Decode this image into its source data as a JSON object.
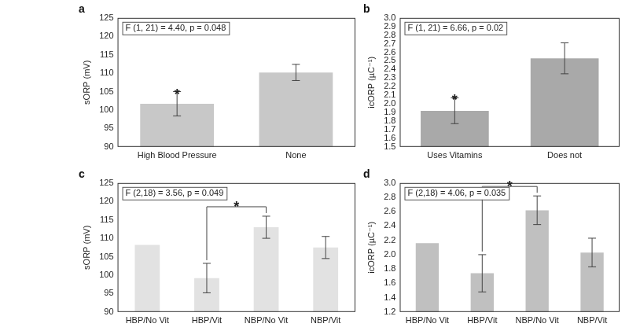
{
  "chart_data": [
    {
      "type": "bar",
      "title": "a",
      "annotation": "F (1, 21) = 4.40, p = 0.048",
      "y_label": "sORP (mV)",
      "categories": [
        "High Blood Pressure",
        "None"
      ],
      "values": [
        101.7,
        110.2
      ],
      "errors": [
        3.3,
        2.2
      ],
      "colors": [
        "#c8c8c8",
        "#c8c8c8"
      ],
      "ylim": [
        90,
        125
      ],
      "yticks": [
        90,
        95,
        100,
        105,
        110,
        115,
        120,
        125
      ],
      "grid": false,
      "significance": {
        "label": "*",
        "categories": [
          "High Blood Pressure"
        ]
      }
    },
    {
      "type": "bar",
      "title": "b",
      "annotation": "F (1, 21) = 6.66, p = 0.02",
      "y_label": "icORP (µC⁻¹)",
      "categories": [
        "Uses Vitamins",
        "Does not"
      ],
      "values": [
        1.92,
        2.53
      ],
      "errors": [
        0.15,
        0.18
      ],
      "colors": [
        "#a9a9a9",
        "#a9a9a9"
      ],
      "ylim": [
        1.5,
        3.0
      ],
      "yticks": [
        1.5,
        1.6,
        1.7,
        1.8,
        1.9,
        {
          "value": 2,
          "label": "2.0"
        },
        2.1,
        2.2,
        2.3,
        2.4,
        2.5,
        2.6,
        2.7,
        2.8,
        2.9,
        {
          "value": 3,
          "label": "3.0"
        }
      ],
      "grid": false,
      "significance": {
        "label": "*",
        "categories": [
          "Uses Vitamins"
        ]
      }
    },
    {
      "type": "bar",
      "title": "c",
      "annotation": "F (2,18) = 3.56, p = 0.049",
      "y_label": "sORP (mV)",
      "categories": [
        "HBP/No Vit",
        "HBP/Vit",
        "NBP/No Vit",
        "NBP/Vit"
      ],
      "values": [
        108.2,
        99.2,
        113.0,
        107.5
      ],
      "errors": [
        null,
        4.0,
        3.0,
        3.0
      ],
      "colors": [
        "#e2e2e2",
        "#e2e2e2",
        "#e2e2e2",
        "#e2e2e2"
      ],
      "ylim": [
        90,
        125
      ],
      "yticks": [
        90,
        95,
        100,
        105,
        110,
        115,
        120,
        125
      ],
      "grid": false,
      "significance": {
        "label": "*",
        "categories": [
          "HBP/Vit",
          "NBP/No Vit"
        ]
      }
    },
    {
      "type": "bar",
      "title": "d",
      "annotation": "F (2,18) = 4.06, p = 0.035",
      "y_label": "icORP (µC⁻¹)",
      "categories": [
        "HBP/No Vit",
        "HBP/Vit",
        "NBP/No Vit",
        "NBP/Vit"
      ],
      "values": [
        2.16,
        1.74,
        2.62,
        2.03
      ],
      "errors": [
        null,
        0.26,
        0.2,
        0.2
      ],
      "colors": [
        "#c0c0c0",
        "#c0c0c0",
        "#c0c0c0",
        "#c0c0c0"
      ],
      "ylim": [
        1.2,
        3.0
      ],
      "yticks": [
        1.2,
        1.4,
        1.6,
        1.8,
        {
          "value": 2,
          "label": "2.0"
        },
        2.2,
        2.4,
        2.6,
        2.8,
        {
          "value": 3,
          "label": "3.0"
        }
      ],
      "grid": false,
      "significance": {
        "label": "*",
        "categories": [
          "HBP/Vit",
          "NBP/No Vit"
        ]
      }
    }
  ]
}
